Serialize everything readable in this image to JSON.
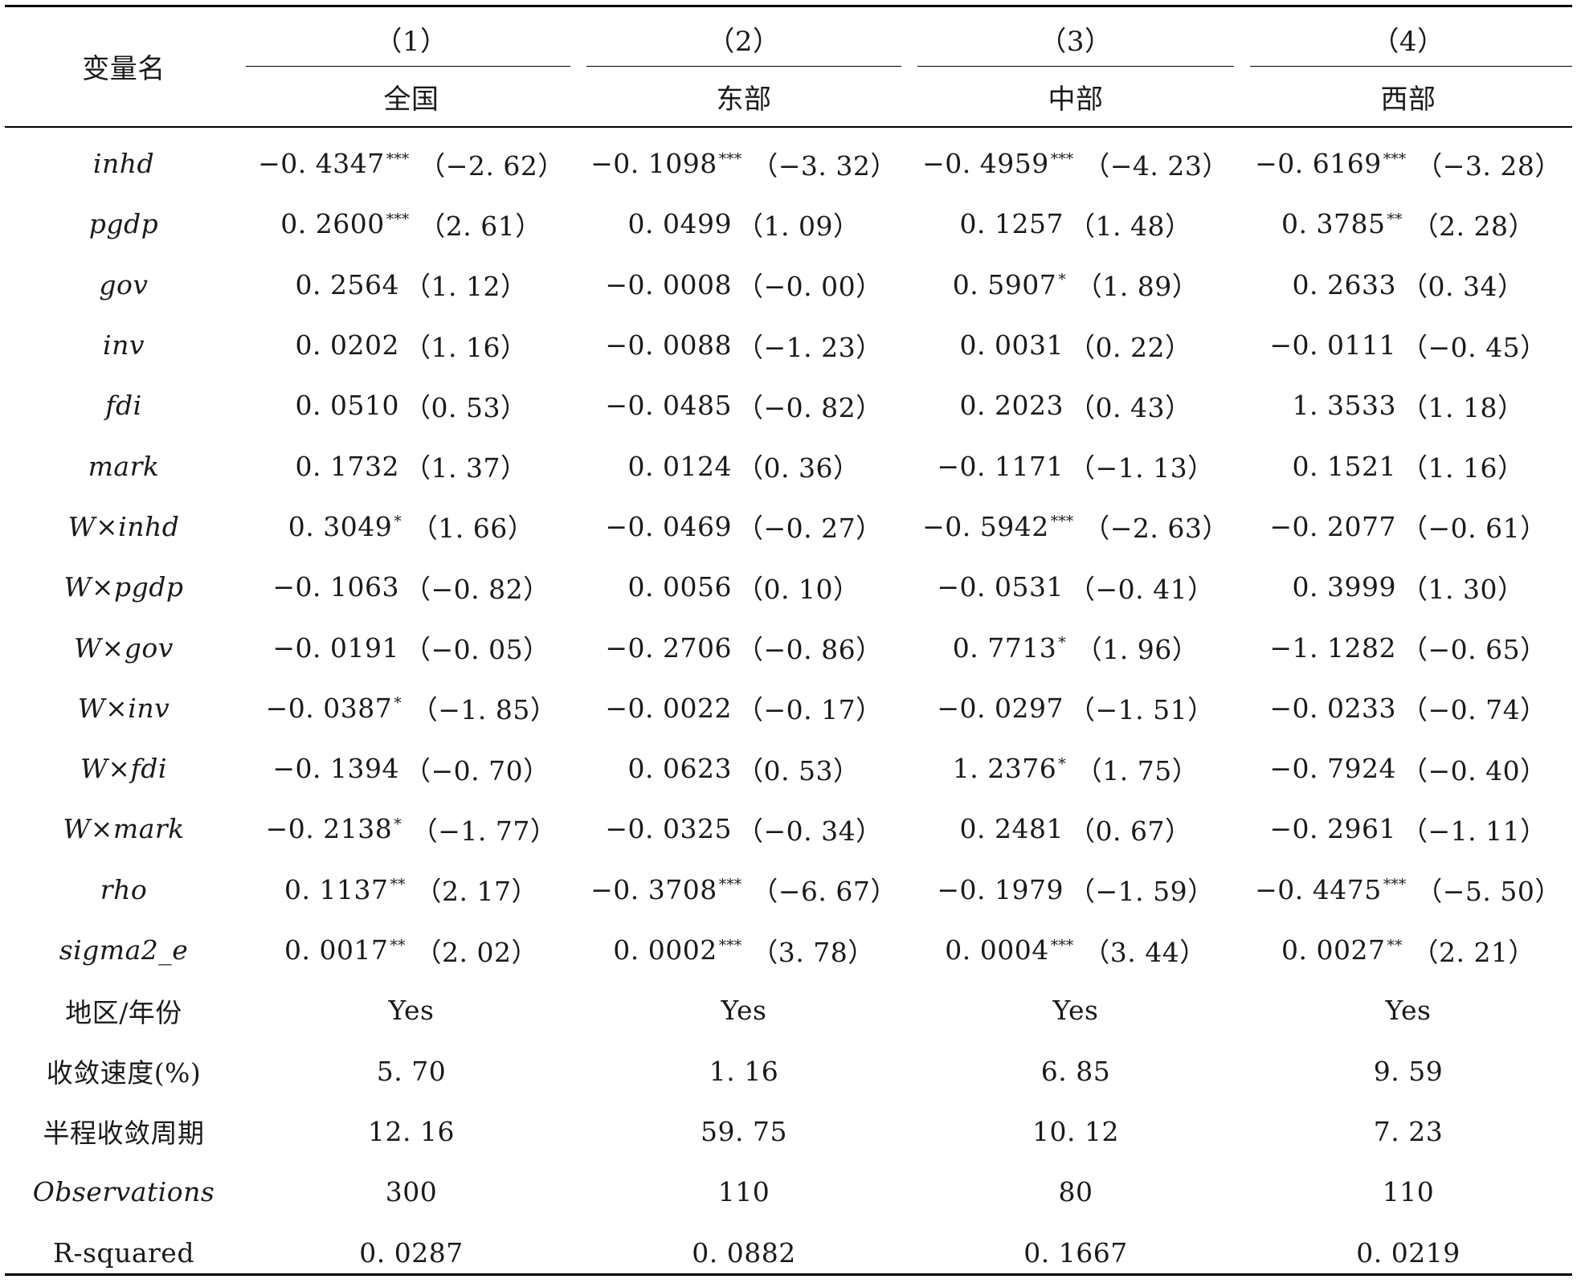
{
  "table": {
    "var_header": "变量名",
    "columns": [
      {
        "number": "（1）",
        "region": "全国"
      },
      {
        "number": "（2）",
        "region": "东部"
      },
      {
        "number": "（3）",
        "region": "中部"
      },
      {
        "number": "（4）",
        "region": "西部"
      }
    ],
    "rows": [
      {
        "var": "inhd",
        "italic": true,
        "cells": [
          {
            "coef": "−0. 4347",
            "stars": "***",
            "t": "（−2. 62）"
          },
          {
            "coef": "−0. 1098",
            "stars": "***",
            "t": "（−3. 32）"
          },
          {
            "coef": "−0. 4959",
            "stars": "***",
            "t": "（−4. 23）"
          },
          {
            "coef": "−0. 6169",
            "stars": "***",
            "t": "（−3. 28）"
          }
        ]
      },
      {
        "var": "pgdp",
        "italic": true,
        "cells": [
          {
            "coef": "0. 2600",
            "stars": "***",
            "t": "（2. 61）"
          },
          {
            "coef": "0. 0499",
            "stars": "",
            "t": "（1. 09）"
          },
          {
            "coef": "0. 1257",
            "stars": "",
            "t": "（1. 48）"
          },
          {
            "coef": "0. 3785",
            "stars": "**",
            "t": "（2. 28）"
          }
        ]
      },
      {
        "var": "gov",
        "italic": true,
        "cells": [
          {
            "coef": "0. 2564",
            "stars": "",
            "t": "（1. 12）"
          },
          {
            "coef": "−0. 0008",
            "stars": "",
            "t": "（−0. 00）"
          },
          {
            "coef": "0. 5907",
            "stars": "*",
            "t": "（1. 89）"
          },
          {
            "coef": "0. 2633",
            "stars": "",
            "t": "（0. 34）"
          }
        ]
      },
      {
        "var": "inv",
        "italic": true,
        "cells": [
          {
            "coef": "0. 0202",
            "stars": "",
            "t": "（1. 16）"
          },
          {
            "coef": "−0. 0088",
            "stars": "",
            "t": "（−1. 23）"
          },
          {
            "coef": "0. 0031",
            "stars": "",
            "t": "（0. 22）"
          },
          {
            "coef": "−0. 0111",
            "stars": "",
            "t": "（−0. 45）"
          }
        ]
      },
      {
        "var": "fdi",
        "italic": true,
        "cells": [
          {
            "coef": "0. 0510",
            "stars": "",
            "t": "（0. 53）"
          },
          {
            "coef": "−0. 0485",
            "stars": "",
            "t": "（−0. 82）"
          },
          {
            "coef": "0. 2023",
            "stars": "",
            "t": "（0. 43）"
          },
          {
            "coef": "1. 3533",
            "stars": "",
            "t": "（1. 18）"
          }
        ]
      },
      {
        "var": "mark",
        "italic": true,
        "cells": [
          {
            "coef": "0. 1732",
            "stars": "",
            "t": "（1. 37）"
          },
          {
            "coef": "0. 0124",
            "stars": "",
            "t": "（0. 36）"
          },
          {
            "coef": "−0. 1171",
            "stars": "",
            "t": "（−1. 13）"
          },
          {
            "coef": "0. 1521",
            "stars": "",
            "t": "（1. 16）"
          }
        ]
      },
      {
        "var": "W×inhd",
        "italic": true,
        "cells": [
          {
            "coef": "0. 3049",
            "stars": "*",
            "t": "（1. 66）"
          },
          {
            "coef": "−0. 0469",
            "stars": "",
            "t": "（−0. 27）"
          },
          {
            "coef": "−0. 5942",
            "stars": "***",
            "t": "（−2. 63）"
          },
          {
            "coef": "−0. 2077",
            "stars": "",
            "t": "（−0. 61）"
          }
        ]
      },
      {
        "var": "W×pgdp",
        "italic": true,
        "cells": [
          {
            "coef": "−0. 1063",
            "stars": "",
            "t": "（−0. 82）"
          },
          {
            "coef": "0. 0056",
            "stars": "",
            "t": "（0. 10）"
          },
          {
            "coef": "−0. 0531",
            "stars": "",
            "t": "（−0. 41）"
          },
          {
            "coef": "0. 3999",
            "stars": "",
            "t": "（1. 30）"
          }
        ]
      },
      {
        "var": "W×gov",
        "italic": true,
        "cells": [
          {
            "coef": "−0. 0191",
            "stars": "",
            "t": "（−0. 05）"
          },
          {
            "coef": "−0. 2706",
            "stars": "",
            "t": "（−0. 86）"
          },
          {
            "coef": "0. 7713",
            "stars": "*",
            "t": "（1. 96）"
          },
          {
            "coef": "−1. 1282",
            "stars": "",
            "t": "（−0. 65）"
          }
        ]
      },
      {
        "var": "W×inv",
        "italic": true,
        "cells": [
          {
            "coef": "−0. 0387",
            "stars": "*",
            "t": "（−1. 85）"
          },
          {
            "coef": "−0. 0022",
            "stars": "",
            "t": "（−0. 17）"
          },
          {
            "coef": "−0. 0297",
            "stars": "",
            "t": "（−1. 51）"
          },
          {
            "coef": "−0. 0233",
            "stars": "",
            "t": "（−0. 74）"
          }
        ]
      },
      {
        "var": "W×fdi",
        "italic": true,
        "cells": [
          {
            "coef": "−0. 1394",
            "stars": "",
            "t": "（−0. 70）"
          },
          {
            "coef": "0. 0623",
            "stars": "",
            "t": "（0. 53）"
          },
          {
            "coef": "1. 2376",
            "stars": "*",
            "t": "（1. 75）"
          },
          {
            "coef": "−0. 7924",
            "stars": "",
            "t": "（−0. 40）"
          }
        ]
      },
      {
        "var": "W×mark",
        "italic": true,
        "cells": [
          {
            "coef": "−0. 2138",
            "stars": "*",
            "t": "（−1. 77）"
          },
          {
            "coef": "−0. 0325",
            "stars": "",
            "t": "（−0. 34）"
          },
          {
            "coef": "0. 2481",
            "stars": "",
            "t": "（0. 67）"
          },
          {
            "coef": "−0. 2961",
            "stars": "",
            "t": "（−1. 11）"
          }
        ]
      },
      {
        "var": "rho",
        "italic": true,
        "cells": [
          {
            "coef": "0. 1137",
            "stars": "**",
            "t": "（2. 17）"
          },
          {
            "coef": "−0. 3708",
            "stars": "***",
            "t": "（−6. 67）"
          },
          {
            "coef": "−0. 1979",
            "stars": "",
            "t": "（−1. 59）"
          },
          {
            "coef": "−0. 4475",
            "stars": "***",
            "t": "（−5. 50）"
          }
        ]
      },
      {
        "var": "sigma2_e",
        "italic": true,
        "cells": [
          {
            "coef": "0. 0017",
            "stars": "**",
            "t": "（2. 02）"
          },
          {
            "coef": "0. 0002",
            "stars": "***",
            "t": "（3. 78）"
          },
          {
            "coef": "0. 0004",
            "stars": "***",
            "t": "（3. 44）"
          },
          {
            "coef": "0. 0027",
            "stars": "**",
            "t": "（2. 21）"
          }
        ]
      },
      {
        "var": "地区/年份",
        "italic": false,
        "cells": [
          {
            "coef": "Yes",
            "stars": "",
            "t": ""
          },
          {
            "coef": "Yes",
            "stars": "",
            "t": ""
          },
          {
            "coef": "Yes",
            "stars": "",
            "t": ""
          },
          {
            "coef": "Yes",
            "stars": "",
            "t": ""
          }
        ]
      },
      {
        "var": "收敛速度(%)",
        "italic": false,
        "cells": [
          {
            "coef": "5. 70",
            "stars": "",
            "t": ""
          },
          {
            "coef": "1. 16",
            "stars": "",
            "t": ""
          },
          {
            "coef": "6. 85",
            "stars": "",
            "t": ""
          },
          {
            "coef": "9. 59",
            "stars": "",
            "t": ""
          }
        ]
      },
      {
        "var": "半程收敛周期",
        "italic": false,
        "cells": [
          {
            "coef": "12. 16",
            "stars": "",
            "t": ""
          },
          {
            "coef": "59. 75",
            "stars": "",
            "t": ""
          },
          {
            "coef": "10. 12",
            "stars": "",
            "t": ""
          },
          {
            "coef": "7. 23",
            "stars": "",
            "t": ""
          }
        ]
      },
      {
        "var": "Observations",
        "italic": true,
        "cells": [
          {
            "coef": "300",
            "stars": "",
            "t": ""
          },
          {
            "coef": "110",
            "stars": "",
            "t": ""
          },
          {
            "coef": "80",
            "stars": "",
            "t": ""
          },
          {
            "coef": "110",
            "stars": "",
            "t": ""
          }
        ]
      },
      {
        "var": "R-squared",
        "italic": false,
        "cells": [
          {
            "coef": "0. 0287",
            "stars": "",
            "t": ""
          },
          {
            "coef": "0. 0882",
            "stars": "",
            "t": ""
          },
          {
            "coef": "0. 1667",
            "stars": "",
            "t": ""
          },
          {
            "coef": "0. 0219",
            "stars": "",
            "t": ""
          }
        ]
      }
    ]
  }
}
